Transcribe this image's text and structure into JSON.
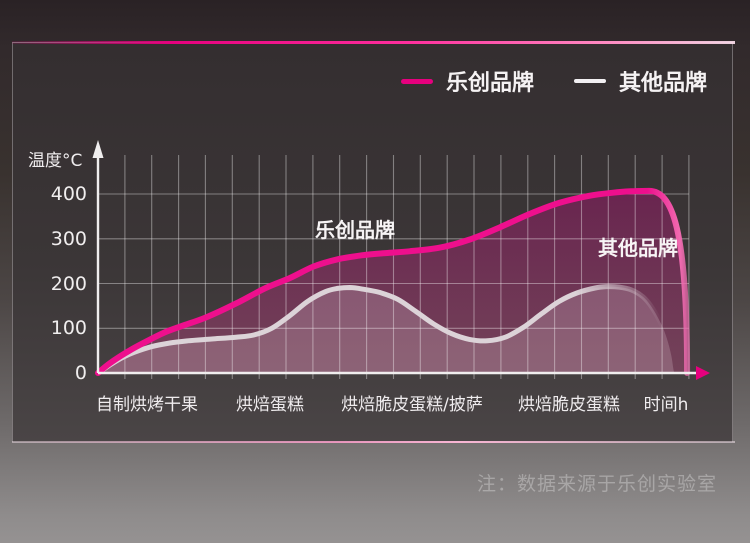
{
  "page": {
    "note": "注：数据来源于乐创实验室"
  },
  "chart_data": {
    "type": "area",
    "ylabel": "温度°C",
    "xlabel": "时间h",
    "y_ticks": [
      0,
      100,
      200,
      300,
      400
    ],
    "ylim": [
      0,
      480
    ],
    "grid": true,
    "legend_position": "top-right",
    "categories": [
      "自制烘烤干果",
      "烘焙蛋糕",
      "烘焙脆皮蛋糕/披萨",
      "烘焙脆皮蛋糕"
    ],
    "category_x_pct": [
      8.2,
      28.7,
      52.4,
      78.6
    ],
    "axis_color": "#f0eeee",
    "x_arrow_color": "#e6007e",
    "grid_color": "rgba(255,255,255,0.38)",
    "series": [
      {
        "name": "乐创品牌",
        "color": "#e6007e",
        "fill_top": "#671f4d",
        "fill_bottom": "#734359",
        "points": [
          [
            0,
            0
          ],
          [
            2,
            22
          ],
          [
            5,
            48
          ],
          [
            8,
            70
          ],
          [
            11,
            90
          ],
          [
            14,
            105
          ],
          [
            18,
            124
          ],
          [
            23,
            155
          ],
          [
            28,
            190
          ],
          [
            32,
            212
          ],
          [
            36,
            238
          ],
          [
            40,
            254
          ],
          [
            44,
            263
          ],
          [
            48,
            268
          ],
          [
            52,
            272
          ],
          [
            57,
            280
          ],
          [
            62,
            298
          ],
          [
            67,
            325
          ],
          [
            72,
            355
          ],
          [
            77,
            380
          ],
          [
            82,
            396
          ],
          [
            86,
            403
          ],
          [
            89,
            406
          ],
          [
            92,
            407
          ]
        ]
      },
      {
        "name": "其他品牌",
        "color": "#dcd3d8",
        "fill": "rgba(230,212,221,0.22)",
        "points": [
          [
            0,
            0
          ],
          [
            2,
            18
          ],
          [
            4,
            34
          ],
          [
            6,
            46
          ],
          [
            9,
            59
          ],
          [
            12,
            67
          ],
          [
            15,
            72
          ],
          [
            19,
            76
          ],
          [
            23,
            80
          ],
          [
            26,
            85
          ],
          [
            29,
            100
          ],
          [
            32,
            128
          ],
          [
            35,
            160
          ],
          [
            38,
            182
          ],
          [
            40,
            189
          ],
          [
            42,
            191
          ],
          [
            44,
            188
          ],
          [
            47,
            180
          ],
          [
            50,
            165
          ],
          [
            53,
            138
          ],
          [
            56,
            110
          ],
          [
            59,
            88
          ],
          [
            62,
            75
          ],
          [
            65,
            72
          ],
          [
            68,
            80
          ],
          [
            71,
            102
          ],
          [
            74,
            132
          ],
          [
            77,
            160
          ],
          [
            80,
            179
          ],
          [
            83,
            190
          ],
          [
            85,
            193
          ],
          [
            87,
            192
          ],
          [
            89,
            186
          ],
          [
            91,
            170
          ],
          [
            92.5,
            146
          ],
          [
            94,
            110
          ],
          [
            95,
            76
          ],
          [
            95.7,
            40
          ],
          [
            96.1,
            6
          ],
          [
            96.3,
            0
          ]
        ]
      }
    ]
  }
}
